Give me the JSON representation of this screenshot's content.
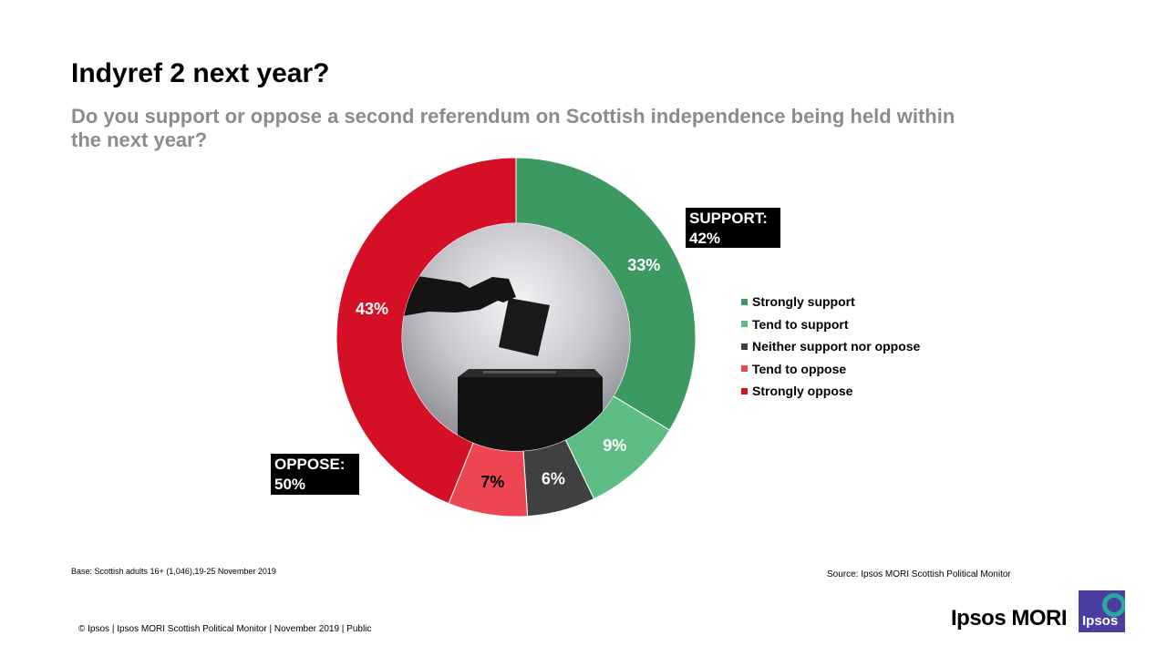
{
  "title": "Indyref 2 next year?",
  "subtitle": "Do you support or oppose a second referendum on Scottish independence being held within the next year?",
  "chart_data": {
    "type": "pie",
    "subtype": "donut",
    "categories": [
      "Strongly support",
      "Tend to support",
      "Neither support nor oppose",
      "Tend to oppose",
      "Strongly oppose"
    ],
    "values": [
      33,
      9,
      6,
      7,
      43
    ],
    "labels": [
      "33%",
      "9%",
      "6%",
      "7%",
      "43%"
    ],
    "colors": [
      "#3d9962",
      "#5dbd84",
      "#404040",
      "#ee4553",
      "#d50f25"
    ],
    "legend_position": "right",
    "groups": [
      {
        "label": "SUPPORT:",
        "value": "42%"
      },
      {
        "label": "OPPOSE:",
        "value": "50%"
      }
    ]
  },
  "center_image": "ballot-box-illustration",
  "footer": {
    "base": "Base: Scottish adults 16+ (1,046),19-25  November 2019",
    "source": "Source: Ipsos MORI Scottish Political Monitor",
    "copyright": "© Ipsos | Ipsos MORI  Scottish Political Monitor | November 2019 | Public",
    "brand": "Ipsos MORI",
    "logo_text": "Ipsos"
  }
}
